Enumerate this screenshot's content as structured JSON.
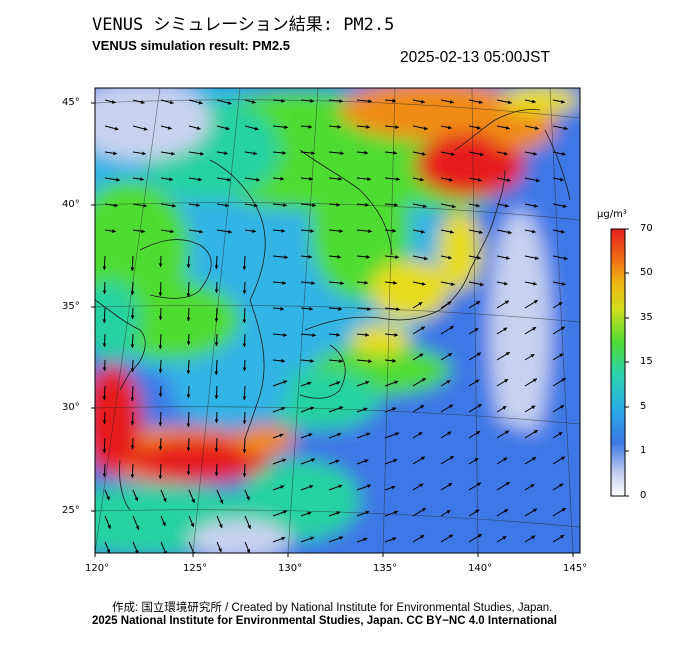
{
  "header": {
    "title_jp": "VENUS シミュレーション結果: PM2.5",
    "title_en": "VENUS simulation result: PM2.5",
    "timestamp": "2025-02-13 05:00JST"
  },
  "map": {
    "lat_labels": [
      "45°",
      "40°",
      "35°",
      "30°",
      "25°"
    ],
    "lon_labels": [
      "120°",
      "125°",
      "130°",
      "135°",
      "140°",
      "145°"
    ],
    "colors": {
      "very_low": "#c8d2f0",
      "low": "#3c78e6",
      "mid_low": "#32b4e6",
      "mid": "#28d2a0",
      "mid_high": "#50dc32",
      "high": "#e6dc1e",
      "very_high": "#f08c14",
      "extreme": "#e61e1e",
      "coast": "#1a1a1a",
      "wind_arrow": "#000000"
    }
  },
  "colorbar": {
    "unit": "μg/m³",
    "labels": [
      "70",
      "50",
      "35",
      "15",
      "5",
      "1",
      "0"
    ]
  },
  "footer": {
    "credit_line1": "作成: 国立環境研究所 / Created by National Institute for Environmental Studies, Japan.",
    "credit_line2": "2025 National Institute for Environmental Studies, Japan. CC BY−NC 4.0 International"
  }
}
